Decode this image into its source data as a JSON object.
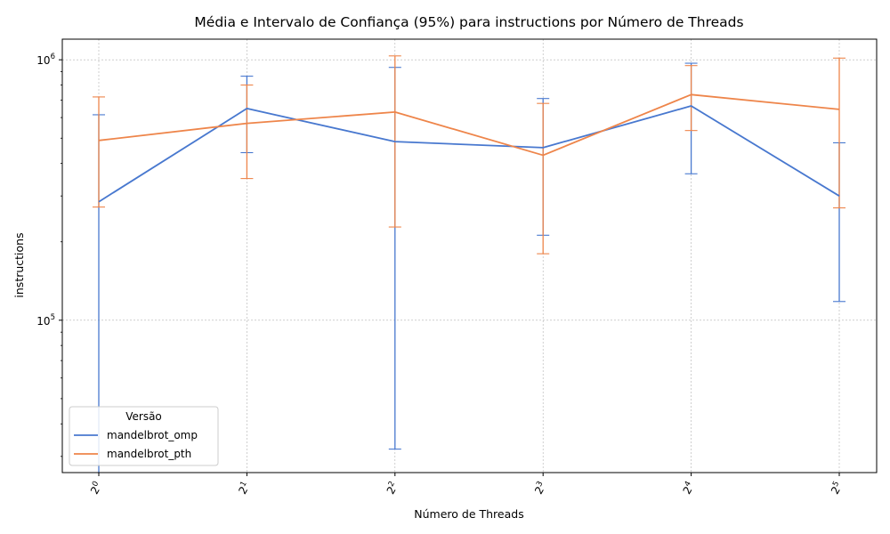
{
  "chart_data": {
    "type": "line",
    "title": "Média e Intervalo de Confiança (95%) para instructions por Número de Threads",
    "xlabel": "Número de Threads",
    "ylabel": "instructions",
    "x": [
      1,
      2,
      4,
      8,
      16,
      32
    ],
    "x_tick_labels": [
      {
        "base": "2",
        "exp": "0"
      },
      {
        "base": "2",
        "exp": "1"
      },
      {
        "base": "2",
        "exp": "2"
      },
      {
        "base": "2",
        "exp": "3"
      },
      {
        "base": "2",
        "exp": "4"
      },
      {
        "base": "2",
        "exp": "5"
      }
    ],
    "x_scale": "log2",
    "y_scale": "log10",
    "ylim": [
      26000,
      1200000
    ],
    "y_tick_labels": [
      {
        "value": 100000,
        "base": "10",
        "exp": "5"
      },
      {
        "value": 1000000,
        "base": "10",
        "exp": "6"
      }
    ],
    "grid": true,
    "legend": {
      "title": "Versão",
      "position": "lower-left"
    },
    "series": [
      {
        "name": "mandelbrot_omp",
        "color": "#4878cf",
        "values": [
          285000,
          650000,
          485000,
          460000,
          665000,
          300000
        ],
        "ci_low": [
          20000,
          440000,
          32000,
          212000,
          365000,
          118000
        ],
        "ci_high": [
          615000,
          865000,
          935000,
          710000,
          970000,
          480000
        ]
      },
      {
        "name": "mandelbrot_pth",
        "color": "#ee854a",
        "values": [
          490000,
          570000,
          630000,
          430000,
          735000,
          645000
        ],
        "ci_low": [
          272000,
          350000,
          228000,
          180000,
          535000,
          270000
        ],
        "ci_high": [
          720000,
          800000,
          1035000,
          680000,
          950000,
          1015000
        ]
      }
    ]
  }
}
